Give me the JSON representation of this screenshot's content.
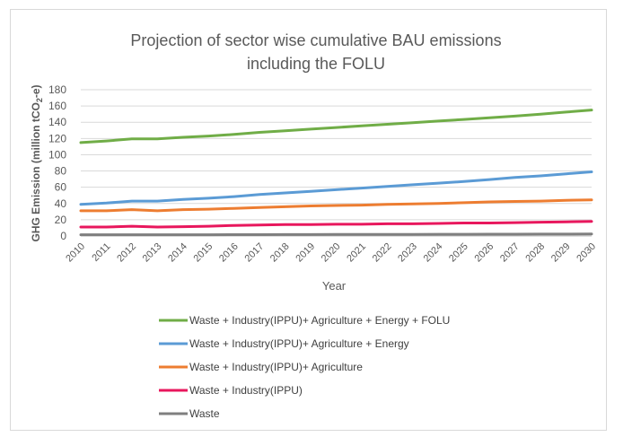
{
  "chart_data": {
    "type": "line",
    "title_line1": "Projection of sector wise cumulative BAU emissions",
    "title_line2": "including the FOLU",
    "xlabel": "Year",
    "ylabel_main": "GHG Emission (million tCO",
    "ylabel_sub": "2",
    "ylabel_end": "-e)",
    "ylim": [
      0,
      180
    ],
    "y_ticks": [
      "0",
      "20",
      "40",
      "60",
      "80",
      "100",
      "120",
      "140",
      "160",
      "180"
    ],
    "grid": true,
    "legend_position": "bottom",
    "x": [
      "2010",
      "2011",
      "2012",
      "2013",
      "2014",
      "2015",
      "2016",
      "2017",
      "2018",
      "2019",
      "2020",
      "2021",
      "2022",
      "2023",
      "2024",
      "2025",
      "2026",
      "2027",
      "2028",
      "2029",
      "2030"
    ],
    "series": [
      {
        "name": "Waste + Industry(IPPU)+ Agriculture + Energy + FOLU",
        "color": "#70ad47",
        "values": [
          115,
          117,
          119.5,
          119.5,
          121.5,
          123,
          125,
          127.5,
          129.5,
          131.5,
          133.5,
          135.5,
          137.5,
          139.5,
          141.5,
          143.5,
          145.5,
          147.5,
          150,
          152.5,
          155
        ]
      },
      {
        "name": "Waste + Industry(IPPU)+ Agriculture + Energy",
        "color": "#5b9bd5",
        "values": [
          39,
          40.5,
          43,
          43,
          45,
          46.5,
          48.5,
          51,
          53,
          55,
          57,
          59,
          61,
          63,
          65,
          67,
          69.5,
          72,
          74,
          76.5,
          79
        ]
      },
      {
        "name": "Waste + Industry(IPPU)+ Agriculture",
        "color": "#ed7d31",
        "values": [
          31,
          31,
          32.5,
          31,
          32.5,
          33,
          34,
          35,
          36,
          37,
          37.5,
          38,
          39,
          39.5,
          40,
          41,
          42,
          42.5,
          43,
          44,
          44.5
        ]
      },
      {
        "name": "Waste + Industry(IPPU)",
        "color": "#e8175d",
        "values": [
          11,
          11,
          12,
          11,
          11.5,
          12,
          13,
          13.5,
          14,
          14,
          14.5,
          14.5,
          15,
          15,
          15.5,
          16,
          16,
          16.5,
          17,
          17.5,
          18
        ]
      },
      {
        "name": "Waste",
        "color": "#7f7f7f",
        "values": [
          1.5,
          1.5,
          1.5,
          1.5,
          1.6,
          1.6,
          1.7,
          1.7,
          1.8,
          1.8,
          1.9,
          1.9,
          2,
          2,
          2.1,
          2.1,
          2.2,
          2.2,
          2.3,
          2.3,
          2.4
        ]
      }
    ]
  }
}
